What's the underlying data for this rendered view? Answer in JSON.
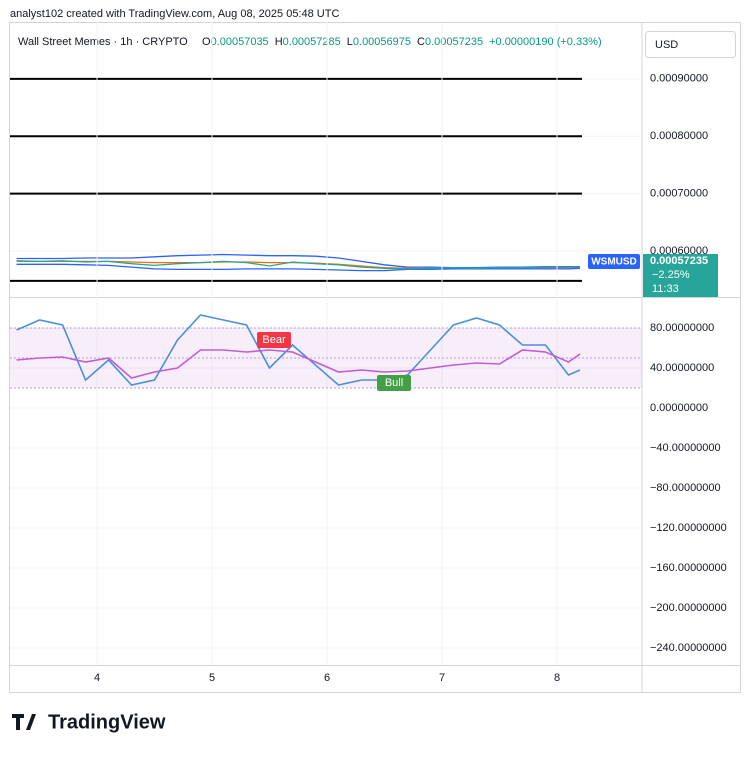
{
  "header": {
    "credit": "analyst102 created with TradingView.com, Aug 08, 2025 05:48 UTC"
  },
  "legend": {
    "symbol": "Wall Street Memes · 1h · CRYPTO",
    "items": [
      {
        "label": "O",
        "value": "0.00057035"
      },
      {
        "label": "H",
        "value": "0.00057285"
      },
      {
        "label": "L",
        "value": "0.00056975"
      },
      {
        "label": "C",
        "value": "0.00057235"
      }
    ],
    "change": "+0.00000190 (+0.33%)"
  },
  "currency": "USD",
  "price_label": {
    "symbol": "WSMUSD",
    "price": "0.00057235",
    "change": "−2.25%",
    "countdown": "11:33"
  },
  "footer": {
    "brand": "TradingView"
  },
  "chart_data": [
    {
      "type": "line",
      "x": [
        3.3,
        3.5,
        3.7,
        3.9,
        4.1,
        4.3,
        4.5,
        4.7,
        4.9,
        5.1,
        5.3,
        5.5,
        5.7,
        5.9,
        6.1,
        6.3,
        6.5,
        6.7,
        6.9,
        7.1,
        7.3,
        7.5,
        7.7,
        7.9,
        8.1,
        8.2
      ],
      "xlim": [
        3.243,
        8.739
      ],
      "ylim": [
        0.00052,
        0.000999
      ],
      "yticks": [
        {
          "value": 0.0009,
          "label": "0.00090000"
        },
        {
          "value": 0.0008,
          "label": "0.00080000"
        },
        {
          "value": 0.0007,
          "label": "0.00070000"
        },
        {
          "value": 0.0006,
          "label": "0.00060000"
        }
      ],
      "levels": [
        0.0009,
        0.0008,
        0.0007,
        0.000548
      ],
      "grid": true,
      "series": [
        {
          "color": "#2962ff",
          "values": [
            0.000587,
            0.000587,
            0.000587,
            0.000588,
            0.000588,
            0.000588,
            0.00059,
            0.000592,
            0.000593,
            0.000594,
            0.000593,
            0.000592,
            0.000592,
            0.000591,
            0.000588,
            0.000582,
            0.000576,
            0.000572,
            0.000572,
            0.000571,
            0.000571,
            0.000572,
            0.000572,
            0.000573,
            0.000573,
            0.000573
          ]
        },
        {
          "color": "#ff6d00",
          "values": [
            0.000582,
            0.000582,
            0.000582,
            0.000582,
            0.000582,
            0.000581,
            0.00058,
            0.00058,
            0.00058,
            0.000581,
            0.000581,
            0.00058,
            0.00058,
            0.000579,
            0.000577,
            0.000574,
            0.000571,
            0.00057,
            0.00057,
            0.00057,
            0.00057,
            0.00057,
            0.000571,
            0.000571,
            0.000571,
            0.000571
          ]
        },
        {
          "color": "#2962ff",
          "values": [
            0.000577,
            0.000577,
            0.000577,
            0.000576,
            0.000575,
            0.000572,
            0.000569,
            0.000568,
            0.000568,
            0.000568,
            0.000569,
            0.000569,
            0.000569,
            0.000568,
            0.000567,
            0.000566,
            0.000566,
            0.000568,
            0.000568,
            0.000569,
            0.000569,
            0.000569,
            0.000569,
            0.000569,
            0.000569,
            0.00057
          ]
        },
        {
          "color": "#26a69a",
          "values": [
            0.000583,
            0.000582,
            0.000583,
            0.000581,
            0.000582,
            0.000578,
            0.000575,
            0.000578,
            0.00058,
            0.000582,
            0.00058,
            0.000574,
            0.000581,
            0.000578,
            0.000576,
            0.000572,
            0.00057,
            0.000569,
            0.00057,
            0.000571,
            0.00057,
            0.000571,
            0.000571,
            0.000572,
            0.000572,
            0.00057235
          ]
        }
      ]
    },
    {
      "type": "line",
      "x": [
        3.3,
        3.5,
        3.7,
        3.9,
        4.1,
        4.3,
        4.5,
        4.7,
        4.9,
        5.1,
        5.3,
        5.5,
        5.7,
        5.9,
        6.1,
        6.3,
        6.5,
        6.7,
        6.9,
        7.1,
        7.3,
        7.5,
        7.7,
        7.9,
        8.1,
        8.2
      ],
      "xlim": [
        3.243,
        8.739
      ],
      "xticks": [
        4,
        5,
        6,
        7,
        8
      ],
      "ylim": [
        -257,
        110
      ],
      "yticks": [
        {
          "value": 80,
          "label": "80.00000000"
        },
        {
          "value": 40,
          "label": "40.00000000"
        },
        {
          "value": 0,
          "label": "0.00000000"
        },
        {
          "value": -40,
          "label": "−40.00000000"
        },
        {
          "value": -80,
          "label": "−80.00000000"
        },
        {
          "value": -120,
          "label": "−120.00000000"
        },
        {
          "value": -160,
          "label": "−160.00000000"
        },
        {
          "value": -200,
          "label": "−200.00000000"
        },
        {
          "value": -240,
          "label": "−240.00000000"
        }
      ],
      "levels": [
        80,
        50,
        20
      ],
      "grid": true,
      "series": [
        {
          "color": "#4a90d9",
          "values": [
            78,
            88,
            83,
            28,
            48,
            23,
            28,
            68,
            93,
            88,
            83,
            40,
            63,
            43,
            23,
            28,
            28,
            33,
            58,
            83,
            90,
            83,
            63,
            63,
            33,
            38
          ]
        },
        {
          "color": "#c45bd6",
          "values": [
            48,
            50,
            51,
            46,
            50,
            30,
            36,
            40,
            58,
            58,
            56,
            58,
            56,
            46,
            36,
            38,
            36,
            37,
            40,
            43,
            45,
            44,
            58,
            56,
            46,
            54
          ]
        }
      ],
      "annotations": [
        {
          "text": "Bear",
          "color": "#f23645"
        },
        {
          "text": "Bull",
          "color": "#43a047"
        }
      ]
    }
  ]
}
